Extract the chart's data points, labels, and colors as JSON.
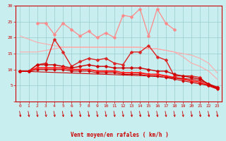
{
  "x": [
    0,
    1,
    2,
    3,
    4,
    5,
    6,
    7,
    8,
    9,
    10,
    11,
    12,
    13,
    14,
    15,
    16,
    17,
    18,
    19,
    20,
    21,
    22,
    23
  ],
  "series": [
    {
      "color": "#ffaaaa",
      "linewidth": 0.8,
      "markersize": 0,
      "marker": "None",
      "values": [
        20.5,
        19.5,
        18.5,
        18.0,
        17.5,
        17.0,
        17.0,
        17.0,
        17.0,
        17.0,
        17.0,
        17.0,
        17.0,
        17.0,
        17.0,
        16.5,
        16.5,
        16.0,
        15.5,
        15.0,
        14.5,
        13.5,
        12.0,
        9.0
      ]
    },
    {
      "color": "#ffaaaa",
      "linewidth": 0.8,
      "markersize": 0,
      "marker": "None",
      "values": [
        15.5,
        15.5,
        15.5,
        16.0,
        16.5,
        17.0,
        17.0,
        17.0,
        17.0,
        17.0,
        17.0,
        17.0,
        17.0,
        17.0,
        17.0,
        16.5,
        16.5,
        16.0,
        15.5,
        14.0,
        12.0,
        11.0,
        9.5,
        7.0
      ]
    },
    {
      "color": "#ff8888",
      "linewidth": 0.9,
      "markersize": 2.5,
      "marker": "D",
      "values": [
        null,
        null,
        24.5,
        24.5,
        21.0,
        24.5,
        22.5,
        20.5,
        22.0,
        20.0,
        21.5,
        20.0,
        27.0,
        26.5,
        29.0,
        20.5,
        29.0,
        24.5,
        22.5,
        null,
        null,
        null,
        null,
        null
      ]
    },
    {
      "color": "#dd2222",
      "linewidth": 1.0,
      "markersize": 2.5,
      "marker": "D",
      "values": [
        9.5,
        9.5,
        11.5,
        12.0,
        19.5,
        15.5,
        11.0,
        12.5,
        13.5,
        13.0,
        13.5,
        12.0,
        11.5,
        15.5,
        15.5,
        17.5,
        14.0,
        13.0,
        8.0,
        8.0,
        8.0,
        7.5,
        5.0,
        4.5
      ]
    },
    {
      "color": "#cc0000",
      "linewidth": 1.0,
      "markersize": 2.5,
      "marker": "D",
      "values": [
        9.5,
        9.5,
        11.5,
        11.5,
        11.5,
        11.0,
        10.5,
        11.0,
        11.5,
        11.0,
        11.0,
        10.5,
        10.5,
        10.5,
        10.5,
        10.0,
        9.5,
        9.5,
        8.5,
        8.0,
        7.5,
        7.0,
        5.5,
        4.5
      ]
    },
    {
      "color": "#ff2222",
      "linewidth": 1.5,
      "markersize": 2.5,
      "marker": "D",
      "values": [
        9.5,
        9.5,
        10.5,
        10.5,
        10.5,
        10.5,
        10.0,
        10.0,
        10.0,
        9.5,
        9.5,
        9.5,
        9.0,
        9.0,
        9.0,
        8.5,
        8.5,
        8.0,
        7.5,
        7.0,
        6.5,
        6.0,
        5.0,
        4.0
      ]
    },
    {
      "color": "#cc0000",
      "linewidth": 0.8,
      "markersize": 2.0,
      "marker": "D",
      "values": [
        9.5,
        9.5,
        10.0,
        10.0,
        10.0,
        10.0,
        9.5,
        9.5,
        9.5,
        9.0,
        9.0,
        9.0,
        8.5,
        8.5,
        8.5,
        8.0,
        8.0,
        7.5,
        7.0,
        6.5,
        6.0,
        5.5,
        5.0,
        4.0
      ]
    },
    {
      "color": "#cc0000",
      "linewidth": 0.8,
      "markersize": 0,
      "marker": "None",
      "values": [
        9.5,
        9.4,
        9.3,
        9.2,
        9.1,
        9.0,
        8.9,
        8.8,
        8.7,
        8.6,
        8.5,
        8.4,
        8.3,
        8.2,
        8.1,
        8.0,
        7.8,
        7.6,
        7.4,
        7.2,
        7.0,
        6.5,
        5.5,
        4.0
      ]
    }
  ],
  "xlabel": "Vent moyen/en rafales ( km/h )",
  "xlim": [
    -0.5,
    23.5
  ],
  "ylim": [
    0,
    30
  ],
  "yticks": [
    0,
    5,
    10,
    15,
    20,
    25,
    30
  ],
  "xticks": [
    0,
    1,
    2,
    3,
    4,
    5,
    6,
    7,
    8,
    9,
    10,
    11,
    12,
    13,
    14,
    15,
    16,
    17,
    18,
    19,
    20,
    21,
    22,
    23
  ],
  "bg_color": "#c8eef0",
  "grid_color": "#99cccc",
  "axes_color": "#cc0000",
  "tick_color": "#cc0000",
  "xlabel_color": "#cc0000"
}
